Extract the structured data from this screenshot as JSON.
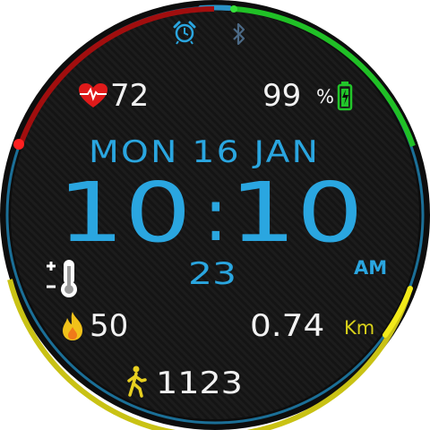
{
  "status": {
    "heart_rate": "72",
    "battery": "99",
    "battery_unit": "%"
  },
  "date": {
    "text": "MON 16 JAN"
  },
  "time": {
    "hours": "10",
    "separator": ":",
    "minutes": "10",
    "seconds": "23",
    "ampm": "AM"
  },
  "stats": {
    "calories": "50",
    "distance": "0.74",
    "distance_unit": "Km",
    "steps": "1123"
  },
  "icons": {
    "alarm": "alarm-clock-icon",
    "bluetooth": "bluetooth-icon",
    "heart": "heart-pulse-icon",
    "battery": "battery-icon",
    "thermometer": "thermometer-icon",
    "flame": "flame-icon",
    "walker": "walking-person-icon"
  },
  "colors": {
    "blue": "#2aa6e0",
    "white": "#f2f2f2",
    "red": "#e01a1a",
    "green": "#22c52a",
    "yellow": "#d9d21a",
    "teal_ring": "#1b6f97"
  }
}
